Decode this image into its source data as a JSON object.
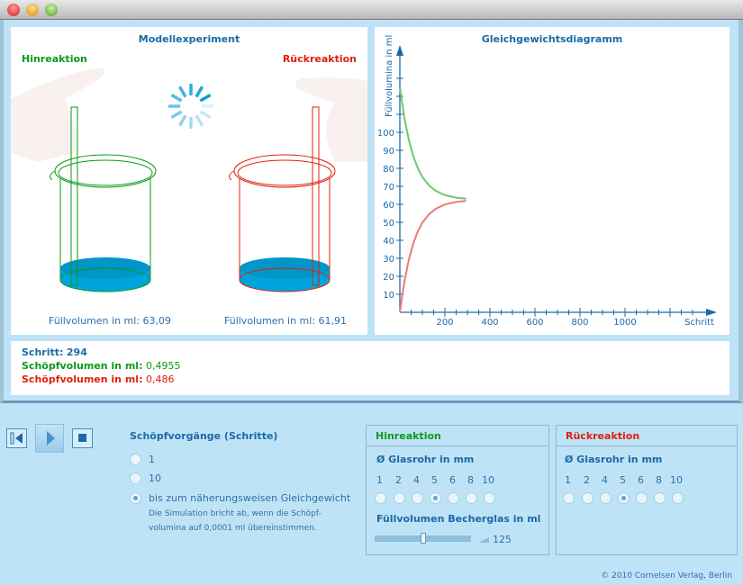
{
  "window": {
    "controls": [
      "close",
      "minimize",
      "zoom"
    ]
  },
  "experiment": {
    "title": "Modellexperiment",
    "forward_label": "Hinreaktion",
    "backward_label": "Rückreaktion",
    "left_volume": "Füllvolumen in ml: 63,09",
    "right_volume": "Füllvolumen in ml: 61,91"
  },
  "info": {
    "step_label": "Schritt:",
    "step_value": "294",
    "scoop_label": "Schöpfvolumen in ml:",
    "scoop_forward": "0,4955",
    "scoop_backward": "0,486"
  },
  "controls": {
    "steps_title": "Schöpfvorgänge (Schritte)",
    "options": [
      "1",
      "10",
      "bis zum näherungsweisen Gleichgewicht"
    ],
    "selected_option": 2,
    "note_line1": "Die Simulation bricht ab, wenn die Schöpf-",
    "note_line2": "volumina auf 0,0001 ml übereinstimmen."
  },
  "forward_group": {
    "title": "Hinreaktion",
    "diameter_label": "Ø Glasrohr in mm",
    "diameters": [
      "1",
      "2",
      "4",
      "5",
      "6",
      "8",
      "10"
    ],
    "selected_diameter": "5",
    "volume_label": "Füllvolumen Becherglas in ml",
    "volume_value": "125",
    "slider_fraction": 0.5
  },
  "backward_group": {
    "title": "Rückreaktion",
    "diameter_label": "Ø Glasrohr in mm",
    "diameters": [
      "1",
      "2",
      "4",
      "5",
      "6",
      "8",
      "10"
    ],
    "selected_diameter": "5"
  },
  "copyright": "© 2010 Cornelsen Verlag, Berlin",
  "colors": {
    "forward": "#0a9a1a",
    "backward": "#e0200c",
    "accent": "#1a6aa8",
    "liquid": "#00a4dc"
  },
  "chart_data": {
    "type": "line",
    "title": "Gleichgewichtsdiagramm",
    "xlabel": "Schritt",
    "ylabel": "Füllvolumina in ml",
    "xlim": [
      0,
      1400
    ],
    "ylim": [
      0,
      140
    ],
    "xticks": [
      200,
      400,
      600,
      800,
      1000
    ],
    "yticks": [
      10,
      20,
      30,
      40,
      50,
      60,
      70,
      80,
      90,
      100
    ],
    "x": [
      0,
      20,
      40,
      60,
      80,
      100,
      130,
      160,
      200,
      250,
      294
    ],
    "series": [
      {
        "name": "Hinreaktion",
        "color": "#6cc96c",
        "values": [
          125,
          108.0,
          95.6,
          86.6,
          80.0,
          75.2,
          70.4,
          67.4,
          65.1,
          63.7,
          63.09
        ]
      },
      {
        "name": "Rückreaktion",
        "color": "#ec7a74",
        "values": [
          0,
          17.0,
          29.4,
          38.4,
          45.0,
          49.8,
          54.6,
          57.6,
          59.9,
          61.3,
          61.91
        ]
      }
    ]
  }
}
